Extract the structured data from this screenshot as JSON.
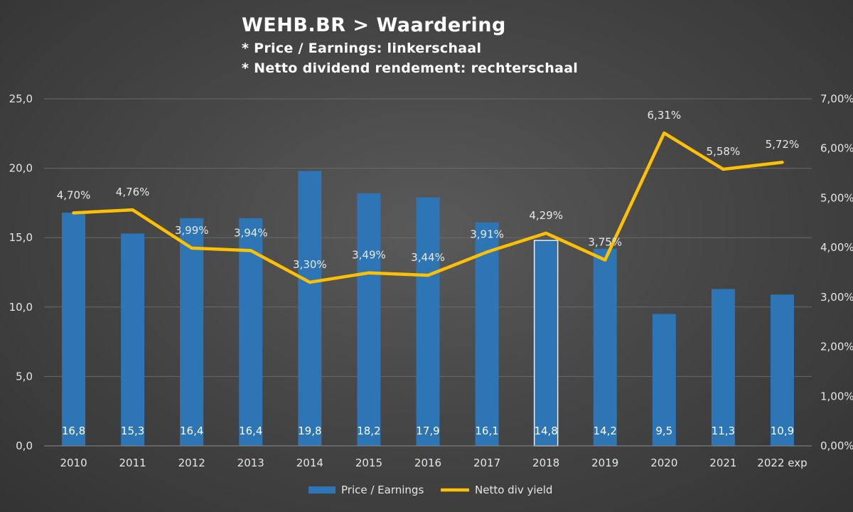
{
  "chart_data": {
    "type": "bar",
    "title": "WEHB.BR > Waardering",
    "subtitle_lines": [
      "* Price / Earnings: linkerschaal",
      "* Netto dividend rendement: rechterschaal"
    ],
    "categories": [
      "2010",
      "2011",
      "2012",
      "2013",
      "2014",
      "2015",
      "2016",
      "2017",
      "2018",
      "2019",
      "2020",
      "2021",
      "2022 exp"
    ],
    "series": [
      {
        "name": "Price / Earnings",
        "type": "bar",
        "axis": "left",
        "color": "#2e75b6",
        "values": [
          16.8,
          15.3,
          16.4,
          16.4,
          19.8,
          18.2,
          17.9,
          16.1,
          14.8,
          14.2,
          9.5,
          11.3,
          10.9
        ],
        "labels": [
          "16,8",
          "15,3",
          "16,4",
          "16,4",
          "19,8",
          "18,2",
          "17,9",
          "16,1",
          "14,8",
          "14,2",
          "9,5",
          "11,3",
          "10,9"
        ],
        "highlight_index": 8
      },
      {
        "name": "Netto div yield",
        "type": "line",
        "axis": "right",
        "color": "#ffc000",
        "values": [
          4.7,
          4.76,
          3.99,
          3.94,
          3.3,
          3.49,
          3.44,
          3.91,
          4.29,
          3.75,
          6.31,
          5.58,
          5.72
        ],
        "labels": [
          "4,70%",
          "4,76%",
          "3,99%",
          "3,94%",
          "3,30%",
          "3,49%",
          "3,44%",
          "3,91%",
          "4,29%",
          "3,75%",
          "6,31%",
          "5,58%",
          "5,72%"
        ]
      }
    ],
    "y_left": {
      "range": [
        0,
        25
      ],
      "ticks": [
        0,
        5,
        10,
        15,
        20,
        25
      ],
      "tick_labels": [
        "0,0",
        "5,0",
        "10,0",
        "15,0",
        "20,0",
        "25,0"
      ]
    },
    "y_right": {
      "range": [
        0,
        7
      ],
      "ticks": [
        0,
        1,
        2,
        3,
        4,
        5,
        6,
        7
      ],
      "tick_labels": [
        "0,00%",
        "1,00%",
        "2,00%",
        "3,00%",
        "4,00%",
        "5,00%",
        "6,00%",
        "7,00%"
      ]
    },
    "grid": true,
    "grid_color": "#6a6a6a",
    "legend_position": "bottom"
  }
}
